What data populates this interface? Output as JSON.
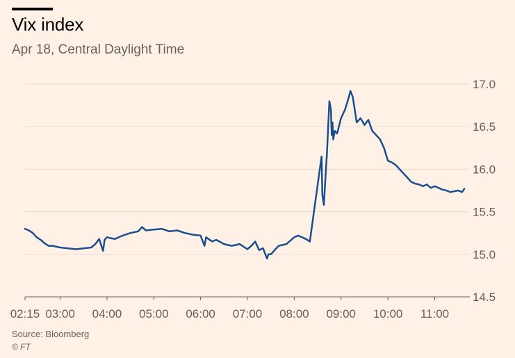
{
  "chart_data": {
    "type": "line",
    "title": "Vix index",
    "subtitle": "Apr 18, Central Daylight Time",
    "x_ticks": [
      "02:15",
      "03:00",
      "04:00",
      "05:00",
      "06:00",
      "07:00",
      "08:00",
      "09:00",
      "10:00",
      "11:00"
    ],
    "y_ticks": [
      "17.0",
      "16.5",
      "16.0",
      "15.5",
      "15.0",
      "14.5"
    ],
    "ylim": [
      14.5,
      17.0
    ],
    "xlim": [
      "02:15",
      "11:45"
    ],
    "grid": true,
    "color": "#1a4f8f",
    "series": [
      {
        "x": [
          "02:15",
          "02:20",
          "02:25",
          "02:30",
          "02:35",
          "02:40",
          "02:45",
          "02:50",
          "03:00",
          "03:10",
          "03:20",
          "03:30",
          "03:40",
          "03:45",
          "03:50",
          "03:55",
          "03:57",
          "04:00",
          "04:10",
          "04:20",
          "04:30",
          "04:40",
          "04:45",
          "04:50",
          "05:00",
          "05:10",
          "05:20",
          "05:30",
          "05:40",
          "05:50",
          "06:00",
          "06:05",
          "06:07",
          "06:10",
          "06:15",
          "06:20",
          "06:30",
          "06:40",
          "06:50",
          "07:00",
          "07:05",
          "07:10",
          "07:15",
          "07:20",
          "07:25",
          "07:27",
          "07:30",
          "07:40",
          "07:50",
          "08:00",
          "08:05",
          "08:10",
          "08:15",
          "08:20",
          "08:35",
          "08:36",
          "08:38",
          "08:40",
          "08:42",
          "08:45",
          "08:47",
          "08:48",
          "08:49",
          "08:50",
          "08:52",
          "08:55",
          "09:00",
          "09:05",
          "09:10",
          "09:12",
          "09:15",
          "09:20",
          "09:25",
          "09:30",
          "09:35",
          "09:40",
          "09:45",
          "09:50",
          "09:55",
          "10:00",
          "10:05",
          "10:10",
          "10:15",
          "10:20",
          "10:25",
          "10:30",
          "10:35",
          "10:40",
          "10:45",
          "10:50",
          "10:55",
          "11:00",
          "11:05",
          "11:10",
          "11:15",
          "11:20",
          "11:25",
          "11:30",
          "11:35",
          "11:38"
        ],
        "y": [
          15.3,
          15.28,
          15.25,
          15.2,
          15.17,
          15.13,
          15.1,
          15.1,
          15.08,
          15.07,
          15.06,
          15.07,
          15.08,
          15.12,
          15.18,
          15.04,
          15.17,
          15.2,
          15.18,
          15.22,
          15.25,
          15.27,
          15.32,
          15.28,
          15.29,
          15.3,
          15.27,
          15.28,
          15.25,
          15.23,
          15.22,
          15.1,
          15.2,
          15.18,
          15.15,
          15.17,
          15.12,
          15.1,
          15.12,
          15.06,
          15.1,
          15.15,
          15.05,
          15.07,
          14.95,
          15.0,
          15.0,
          15.1,
          15.12,
          15.2,
          15.22,
          15.2,
          15.18,
          15.15,
          16.15,
          15.7,
          15.58,
          15.9,
          16.2,
          16.8,
          16.7,
          16.4,
          16.55,
          16.35,
          16.45,
          16.42,
          16.6,
          16.7,
          16.85,
          16.92,
          16.85,
          16.55,
          16.6,
          16.52,
          16.58,
          16.45,
          16.4,
          16.35,
          16.25,
          16.1,
          16.08,
          16.05,
          16.0,
          15.95,
          15.9,
          15.85,
          15.83,
          15.82,
          15.8,
          15.82,
          15.78,
          15.8,
          15.78,
          15.76,
          15.75,
          15.73,
          15.74,
          15.75,
          15.73,
          15.77
        ]
      }
    ]
  },
  "footer": {
    "source": "Source: Bloomberg",
    "copyright": "© FT"
  }
}
